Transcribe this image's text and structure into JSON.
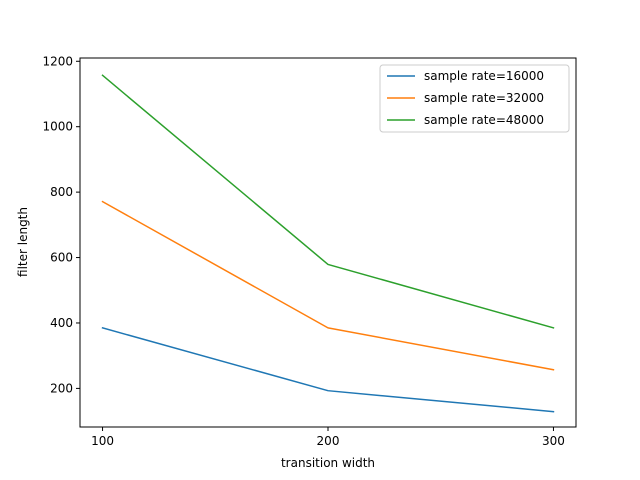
{
  "chart_data": {
    "type": "line",
    "title": "",
    "xlabel": "transition width",
    "ylabel": "filter length",
    "x": [
      100,
      200,
      300
    ],
    "xticks": [
      100,
      200,
      300
    ],
    "yticks": [
      200,
      400,
      600,
      800,
      1000,
      1200
    ],
    "xlim": [
      90,
      310
    ],
    "ylim": [
      82,
      1210
    ],
    "grid": false,
    "legend_position": "upper-right",
    "series": [
      {
        "name": "sample rate=16000",
        "color": "#1f77b4",
        "values": [
          385,
          193,
          129
        ]
      },
      {
        "name": "sample rate=32000",
        "color": "#ff7f0e",
        "values": [
          771,
          385,
          257
        ]
      },
      {
        "name": "sample rate=48000",
        "color": "#2ca02c",
        "values": [
          1157,
          579,
          385
        ]
      }
    ]
  }
}
